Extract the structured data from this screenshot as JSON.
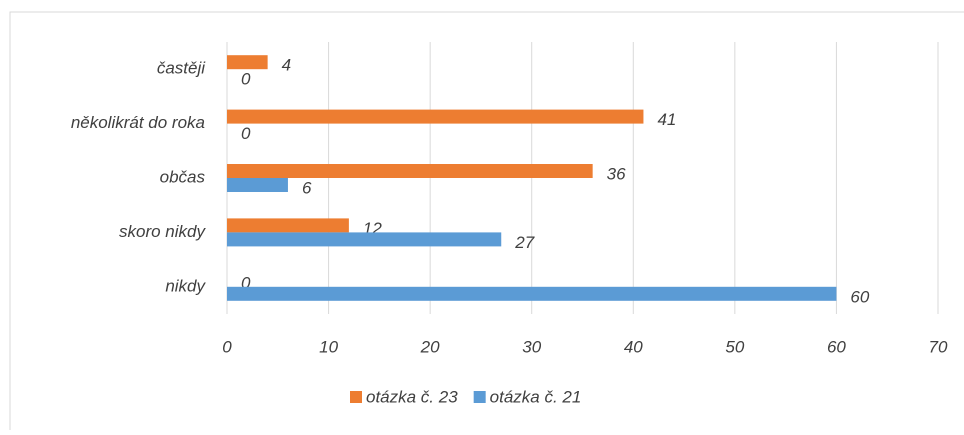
{
  "chart_data": {
    "type": "bar",
    "orientation": "horizontal",
    "categories": [
      "častěji",
      "několikrát do roka",
      "občas",
      "skoro nikdy",
      "nikdy"
    ],
    "series": [
      {
        "name": "otázka č. 23",
        "color": "#ed7d31",
        "values": [
          4,
          41,
          36,
          12,
          0
        ]
      },
      {
        "name": "otázka č. 21",
        "color": "#5b9bd5",
        "values": [
          0,
          0,
          6,
          27,
          60
        ]
      }
    ],
    "xlim": [
      0,
      70
    ],
    "xticks": [
      0,
      10,
      20,
      30,
      40,
      50,
      60,
      70
    ],
    "grid": true,
    "legend": "bottom"
  }
}
